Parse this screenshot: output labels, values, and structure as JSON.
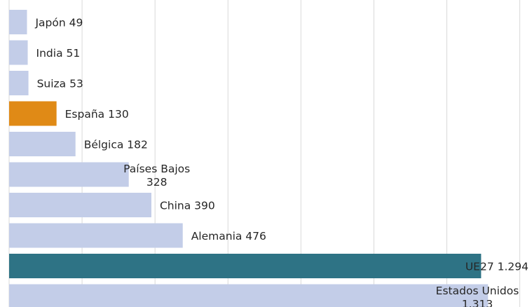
{
  "chart_data": {
    "type": "bar",
    "orientation": "horizontal",
    "categories": [
      "Japón",
      "India",
      "Suiza",
      "España",
      "Bélgica",
      "Países Bajos",
      "China",
      "Alemania",
      "UE27",
      "Estados Unidos"
    ],
    "values": [
      49,
      51,
      53,
      130,
      182,
      328,
      390,
      476,
      1294,
      1313
    ],
    "value_labels": [
      "49",
      "51",
      "53",
      "130",
      "182",
      "328",
      "390",
      "476",
      "1.294",
      "1.313"
    ],
    "colors": [
      "#c3cde8",
      "#c3cde8",
      "#c3cde8",
      "#e08a16",
      "#c3cde8",
      "#c3cde8",
      "#c3cde8",
      "#c3cde8",
      "#2e7385",
      "#c3cde8"
    ],
    "xlim": [
      0,
      1400
    ],
    "grid": true,
    "legend": "none",
    "title": "",
    "xlabel": "",
    "ylabel": ""
  }
}
